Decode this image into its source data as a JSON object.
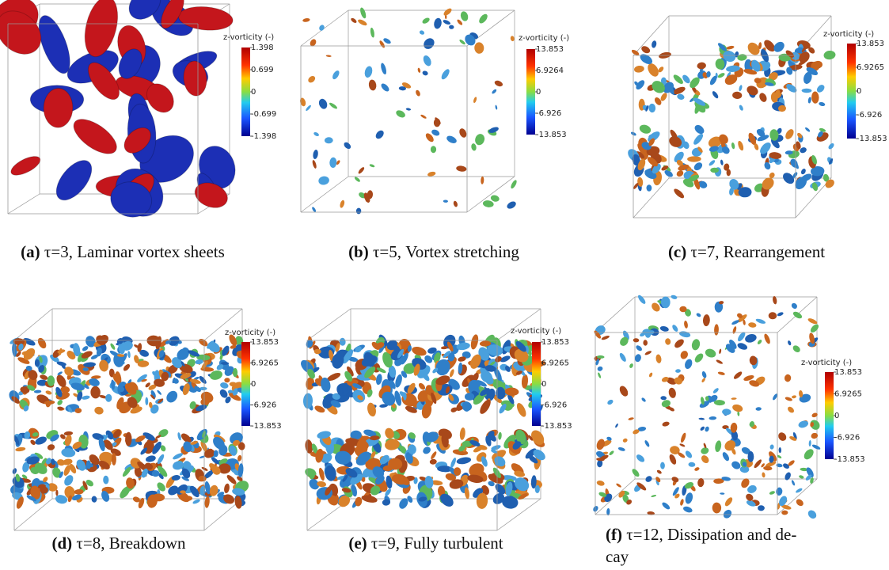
{
  "panels": [
    {
      "colorbar": {
        "title": "z-vorticity (-)",
        "ticks": [
          "1.398",
          "0.699",
          "0",
          "-0.699",
          "-1.398"
        ]
      },
      "caption": {
        "label": "(a)",
        "lines": [
          "τ=3, Laminar vortex sheets"
        ]
      }
    },
    {
      "colorbar": {
        "title": "z-vorticity (-)",
        "ticks": [
          "13.853",
          "6.9264",
          "0",
          "-6.926",
          "-13.853"
        ]
      },
      "caption": {
        "label": "(b)",
        "lines": [
          "τ=5, Vortex stretching"
        ]
      }
    },
    {
      "colorbar": {
        "title": "z-vorticity (-)",
        "ticks": [
          "13.853",
          "6.9265",
          "0",
          "-6.926",
          "-13.853"
        ]
      },
      "caption": {
        "label": "(c)",
        "lines": [
          "τ=7, Rearrangement"
        ]
      }
    },
    {
      "colorbar": {
        "title": "z-vorticity (-)",
        "ticks": [
          "13.853",
          "6.9265",
          "0",
          "-6.926",
          "-13.853"
        ]
      },
      "caption": {
        "label": "(d)",
        "lines": [
          "τ=8, Breakdown"
        ]
      }
    },
    {
      "colorbar": {
        "title": "z-vorticity (-)",
        "ticks": [
          "13.853",
          "6.9265",
          "0",
          "-6.926",
          "-13.853"
        ]
      },
      "caption": {
        "label": "(e)",
        "lines": [
          "τ=9, Fully turbulent"
        ]
      }
    },
    {
      "colorbar": {
        "title": "z-vorticity (-)",
        "ticks": [
          "13.853",
          "6.9265",
          "0",
          "-6.926",
          "-13.853"
        ]
      },
      "caption": {
        "label": "(f)",
        "lines": [
          "τ=12, Dissipation and de-",
          "cay"
        ]
      }
    }
  ]
}
